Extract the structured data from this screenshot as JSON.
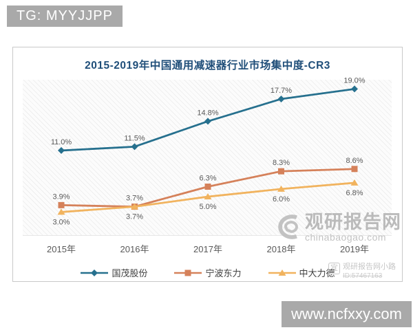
{
  "watermarks": {
    "tg_badge": "TG: MYYJJPP",
    "site_badge": "www.ncfxxy.com",
    "center": {
      "brand": "观研报告网",
      "domain": "chinabaogao.com"
    },
    "corner": {
      "icon_char": "宜",
      "line1": "观研报告网小路",
      "line2": "ID:57467163"
    }
  },
  "chart_data": {
    "type": "line",
    "title": "2015-2019年中国通用减速器行业市场集中度-CR3",
    "categories": [
      "2015年",
      "2016年",
      "2017年",
      "2018年",
      "2019年"
    ],
    "series": [
      {
        "name": "国茂股份",
        "values": [
          11.0,
          11.5,
          14.8,
          17.7,
          19.0
        ],
        "color": "#26708e",
        "marker": "diamond",
        "label_position": "above"
      },
      {
        "name": "宁波东力",
        "values": [
          3.9,
          3.7,
          6.3,
          8.3,
          8.6
        ],
        "color": "#d5815a",
        "marker": "square",
        "label_position": "above"
      },
      {
        "name": "中大力德",
        "values": [
          3.0,
          3.7,
          5.0,
          6.0,
          6.8
        ],
        "color": "#f1b35e",
        "marker": "triangle",
        "label_position": "below"
      }
    ],
    "value_suffix": "%",
    "ylim": [
      0,
      20.2
    ],
    "grid": false,
    "legend_position": "bottom"
  }
}
